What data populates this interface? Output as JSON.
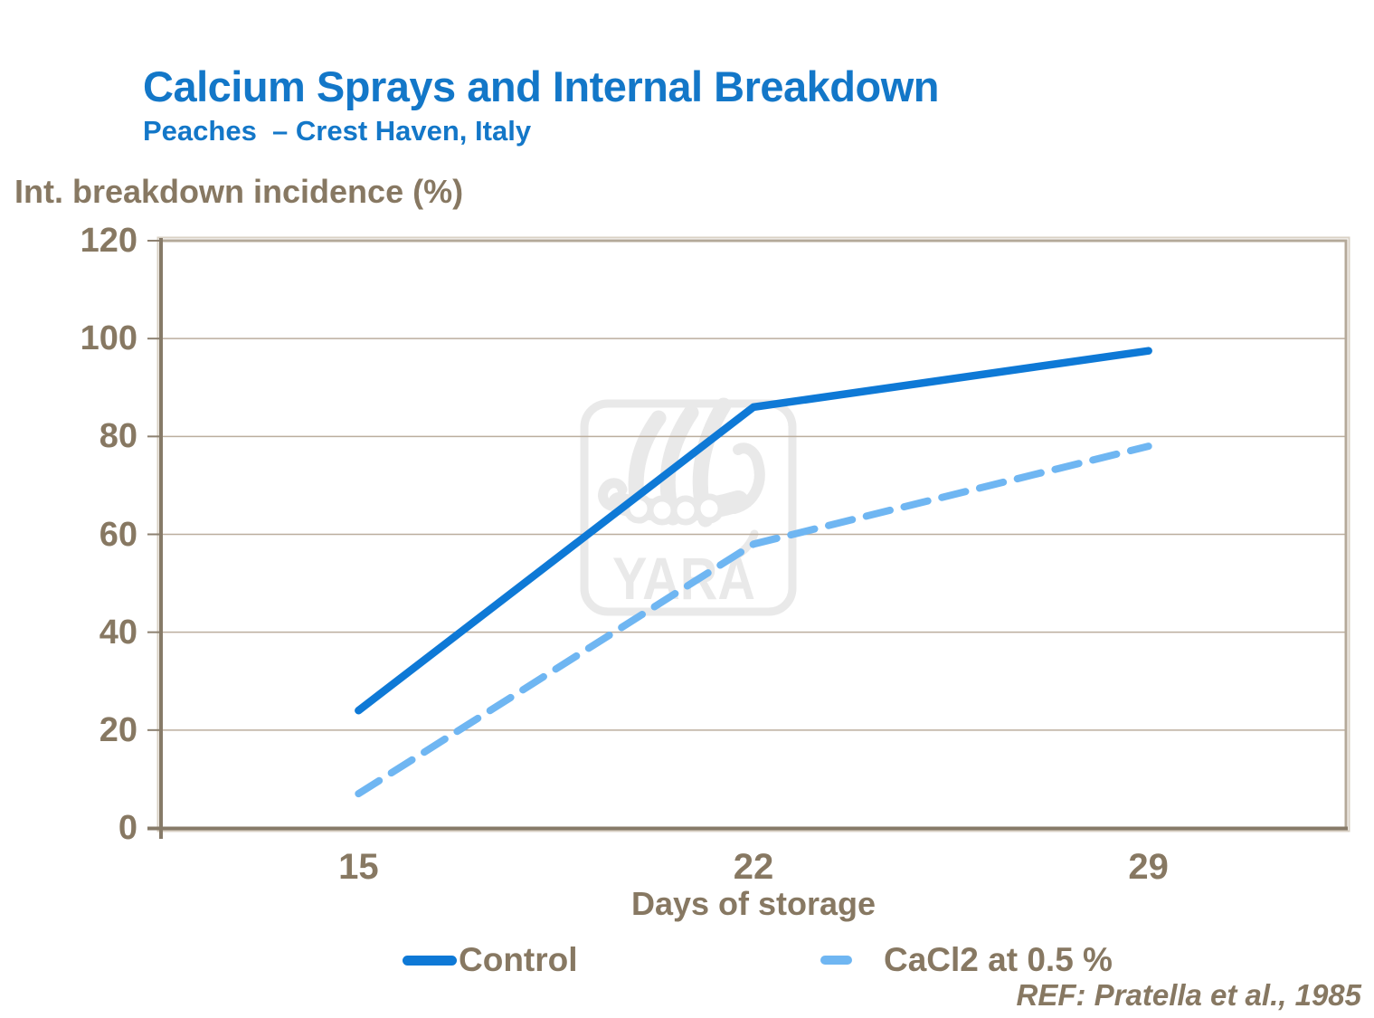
{
  "page": {
    "title": "Calcium Sprays and Internal Breakdown",
    "subtitle": "Peaches  – Crest Haven, Italy",
    "reference": "REF: Pratella et al., 1985"
  },
  "watermark": {
    "text": "YARA",
    "color": "#e9e9e9"
  },
  "colors": {
    "title_blue": "#1377c8",
    "text_taupe": "#877862",
    "axis_dark": "#867a68",
    "plot_border": "#b4a999",
    "gridline": "#bbae9e",
    "outer_shadow": "#d9d1c5"
  },
  "chart_data": {
    "type": "line",
    "title": "Calcium Sprays and Internal Breakdown",
    "subtitle": "Peaches – Crest Haven, Italy",
    "ylabel": "Int. breakdown incidence (%)",
    "xlabel": "Days of storage",
    "categories": [
      "15",
      "22",
      "29"
    ],
    "yticks": [
      0,
      20,
      40,
      60,
      80,
      100,
      120
    ],
    "ylim": [
      0,
      120
    ],
    "grid": "horizontal",
    "legend_position": "bottom",
    "series": [
      {
        "name": "Control",
        "style": "solid",
        "color": "#0e79d6",
        "values": [
          24,
          86,
          97.5
        ]
      },
      {
        "name": "CaCl2 at 0.5 %",
        "style": "dashed",
        "color": "#6fb6f2",
        "values": [
          7,
          58,
          78
        ]
      }
    ]
  }
}
